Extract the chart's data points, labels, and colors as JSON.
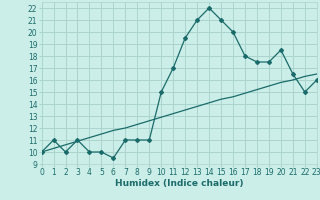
{
  "xlabel": "Humidex (Indice chaleur)",
  "bg_color": "#cceee8",
  "grid_color": "#aad4ce",
  "line_color": "#1a6b6b",
  "x_line": [
    0,
    1,
    2,
    3,
    4,
    5,
    6,
    7,
    8,
    9,
    10,
    11,
    12,
    13,
    14,
    15,
    16,
    17,
    18,
    19,
    20,
    21,
    22,
    23
  ],
  "y_curve": [
    10,
    11,
    10,
    11,
    10,
    10,
    9.5,
    11,
    11,
    11,
    15,
    17,
    19.5,
    21,
    22,
    21,
    20,
    18,
    17.5,
    17.5,
    18.5,
    16.5,
    15,
    16
  ],
  "y_straight": [
    10,
    10.3,
    10.6,
    10.9,
    11.2,
    11.5,
    11.8,
    12.0,
    12.3,
    12.6,
    12.9,
    13.2,
    13.5,
    13.8,
    14.1,
    14.4,
    14.6,
    14.9,
    15.2,
    15.5,
    15.8,
    16.0,
    16.3,
    16.5
  ],
  "xlim": [
    0,
    23
  ],
  "ylim": [
    9,
    22.5
  ],
  "yticks": [
    9,
    10,
    11,
    12,
    13,
    14,
    15,
    16,
    17,
    18,
    19,
    20,
    21,
    22
  ],
  "xticks": [
    0,
    1,
    2,
    3,
    4,
    5,
    6,
    7,
    8,
    9,
    10,
    11,
    12,
    13,
    14,
    15,
    16,
    17,
    18,
    19,
    20,
    21,
    22,
    23
  ]
}
